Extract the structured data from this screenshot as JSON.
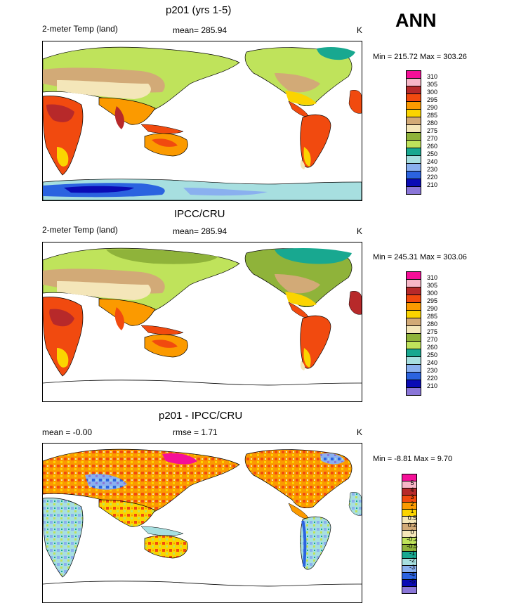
{
  "ann_label": "ANN",
  "colors": {
    "t310": "#f50f98",
    "t305": "#f7b6c7",
    "t300": "#b7292a",
    "t295": "#f14a0f",
    "t290": "#fb9a00",
    "t285": "#fbd400",
    "t280": "#d2aa77",
    "t275": "#f4e6b9",
    "t270": "#8fb33a",
    "t260": "#bfe35b",
    "t250": "#18a890",
    "t240": "#a7dfe0",
    "t230": "#8ab0ef",
    "t220": "#2b63e0",
    "t210": "#0a0bb5",
    "tlow": "#8a76d8"
  },
  "panels": [
    {
      "title": "p201 (yrs 1-5)",
      "left_label": "2-meter Temp (land)",
      "center_label": "mean= 285.94",
      "units": "K",
      "stats": "Min = 215.72 Max = 303.26",
      "legend": {
        "labels": [
          "310",
          "305",
          "300",
          "295",
          "290",
          "285",
          "280",
          "275",
          "270",
          "260",
          "250",
          "240",
          "230",
          "220",
          "210"
        ],
        "colors": [
          "#f50f98",
          "#f7b6c7",
          "#b7292a",
          "#f14a0f",
          "#fb9a00",
          "#fbd400",
          "#d2aa77",
          "#f4e6b9",
          "#8fb33a",
          "#bfe35b",
          "#18a890",
          "#a7dfe0",
          "#8ab0ef",
          "#2b63e0",
          "#0a0bb5",
          "#8a76d8"
        ]
      }
    },
    {
      "title": "IPCC/CRU",
      "left_label": "2-meter Temp (land)",
      "center_label": "mean= 285.94",
      "units": "K",
      "stats": "Min = 245.31 Max = 303.06",
      "legend": {
        "labels": [
          "310",
          "305",
          "300",
          "295",
          "290",
          "285",
          "280",
          "275",
          "270",
          "260",
          "250",
          "240",
          "230",
          "220",
          "210"
        ],
        "colors": [
          "#f50f98",
          "#f7b6c7",
          "#b7292a",
          "#f14a0f",
          "#fb9a00",
          "#fbd400",
          "#d2aa77",
          "#f4e6b9",
          "#8fb33a",
          "#bfe35b",
          "#18a890",
          "#a7dfe0",
          "#8ab0ef",
          "#2b63e0",
          "#0a0bb5",
          "#8a76d8"
        ]
      }
    },
    {
      "title": "p201 - IPCC/CRU",
      "left_label": "mean =  -0.00",
      "center_label": "rmse =   1.71",
      "units": "K",
      "stats": "Min =  -8.81 Max =   9.70",
      "legend": {
        "labels": [
          "5",
          "4",
          "3",
          "2",
          "1",
          "0.5",
          "0.2",
          "0",
          "-0.2",
          "-0.5",
          "-1",
          "-2",
          "-3",
          "-4",
          "-5"
        ],
        "colors": [
          "#f50f98",
          "#f7b6c7",
          "#b7292a",
          "#f14a0f",
          "#fb9a00",
          "#fbd400",
          "#f4e6b9",
          "#d2aa77",
          "#f4e6b9",
          "#bfe35b",
          "#8fb33a",
          "#18a890",
          "#a7dfe0",
          "#8ab0ef",
          "#2b63e0",
          "#0a0bb5",
          "#8a76d8"
        ]
      }
    }
  ]
}
